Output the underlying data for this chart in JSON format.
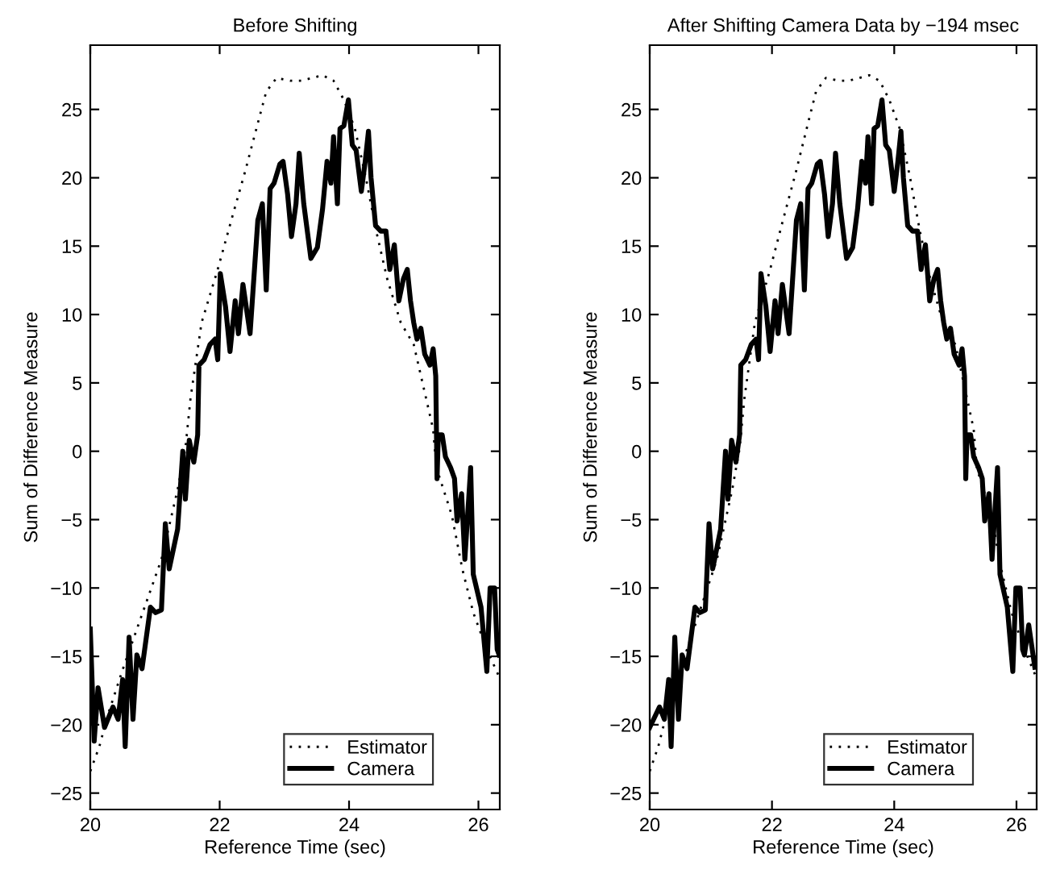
{
  "chart_data": [
    {
      "type": "line",
      "title": "Before Shifting",
      "xlabel": "Reference Time (sec)",
      "ylabel": "Sum of Difference Measure",
      "xlim": [
        20,
        26.33
      ],
      "xticks": [
        20,
        22,
        24,
        26
      ],
      "ylim": [
        -26.2,
        29.7
      ],
      "yticks": [
        -25,
        -20,
        -15,
        -10,
        -5,
        0,
        5,
        10,
        15,
        20,
        25
      ],
      "grid": false,
      "legend": "bottom right",
      "series": [
        {
          "name": "Estimator",
          "color": "#000000",
          "line_style": "dotted",
          "x": [
            20.0,
            20.14,
            20.27,
            20.52,
            20.81,
            21.1,
            21.35,
            21.47,
            21.55,
            21.72,
            21.97,
            22.18,
            22.39,
            22.59,
            22.72,
            22.88,
            23.09,
            23.26,
            23.59,
            23.76,
            23.92,
            24.09,
            24.26,
            24.42,
            24.59,
            24.8,
            25.0,
            25.17,
            25.3,
            25.35,
            25.59,
            25.75,
            25.92,
            26.13,
            26.32
          ],
          "values": [
            -23.4,
            -21.6,
            -19.3,
            -15.7,
            -11.8,
            -7.9,
            -2.8,
            0.2,
            3.9,
            9.4,
            13.3,
            16.9,
            20.4,
            24.0,
            26.3,
            27.3,
            27.1,
            27.1,
            27.5,
            27.1,
            25.7,
            23.6,
            20.0,
            16.1,
            12.6,
            9.4,
            7.8,
            4.3,
            1.6,
            -1.2,
            -4.7,
            -8.6,
            -11.8,
            -14.5,
            -16.5
          ]
        },
        {
          "name": "Camera",
          "color": "#000000",
          "line_style": "solid",
          "x": [
            20.0,
            20.06,
            20.12,
            20.22,
            20.35,
            20.43,
            20.5,
            20.54,
            20.6,
            20.66,
            20.72,
            20.8,
            20.93,
            21.01,
            21.1,
            21.16,
            21.22,
            21.35,
            21.43,
            21.47,
            21.53,
            21.6,
            21.66,
            21.68,
            21.76,
            21.85,
            21.93,
            21.97,
            22.01,
            22.09,
            22.16,
            22.24,
            22.29,
            22.36,
            22.47,
            22.59,
            22.66,
            22.72,
            22.78,
            22.84,
            22.93,
            22.98,
            23.05,
            23.11,
            23.18,
            23.23,
            23.3,
            23.41,
            23.51,
            23.59,
            23.66,
            23.72,
            23.76,
            23.82,
            23.86,
            23.92,
            23.99,
            24.05,
            24.11,
            24.19,
            24.25,
            24.3,
            24.34,
            24.41,
            24.49,
            24.57,
            24.63,
            24.7,
            24.77,
            24.84,
            24.9,
            24.95,
            25.0,
            25.05,
            25.11,
            25.17,
            25.25,
            25.3,
            25.34,
            25.36,
            25.38,
            25.44,
            25.49,
            25.57,
            25.63,
            25.67,
            25.74,
            25.79,
            25.88,
            25.92,
            26.04,
            26.13,
            26.18,
            26.25,
            26.29,
            26.32
          ],
          "values": [
            -13.0,
            -21.2,
            -17.3,
            -20.2,
            -18.7,
            -19.6,
            -16.7,
            -21.6,
            -13.6,
            -19.6,
            -14.9,
            -15.9,
            -11.4,
            -11.8,
            -11.6,
            -5.3,
            -8.6,
            -5.7,
            0.0,
            -3.5,
            0.8,
            -0.8,
            1.2,
            6.3,
            6.7,
            7.8,
            8.2,
            6.7,
            13.0,
            10.6,
            7.3,
            11.0,
            8.6,
            12.2,
            8.6,
            16.9,
            18.1,
            11.8,
            19.2,
            19.6,
            21.0,
            21.2,
            18.8,
            15.7,
            18.1,
            21.8,
            18.1,
            14.1,
            14.9,
            17.7,
            21.2,
            19.6,
            23.0,
            18.1,
            23.6,
            23.8,
            25.7,
            22.4,
            22.0,
            19.0,
            21.2,
            23.4,
            20.0,
            16.5,
            16.1,
            16.1,
            13.3,
            15.1,
            11.0,
            12.6,
            13.3,
            11.0,
            9.4,
            8.2,
            9.0,
            7.1,
            6.3,
            7.5,
            5.5,
            -2.0,
            1.2,
            1.2,
            -0.4,
            -1.2,
            -2.0,
            -5.1,
            -3.1,
            -7.9,
            -1.2,
            -9.0,
            -11.4,
            -16.1,
            -10.0,
            -10.0,
            -14.5,
            -14.9
          ]
        }
      ]
    },
    {
      "type": "line",
      "title": "After Shifting Camera Data by −194 msec",
      "xlabel": "Reference Time (sec)",
      "ylabel": "Sum of Difference Measure",
      "xlim": [
        20,
        26.33
      ],
      "xticks": [
        20,
        22,
        24,
        26
      ],
      "ylim": [
        -26.2,
        29.7
      ],
      "yticks": [
        -25,
        -20,
        -15,
        -10,
        -5,
        0,
        5,
        10,
        15,
        20,
        25
      ],
      "grid": false,
      "legend": "bottom right",
      "series": [
        {
          "name": "Estimator",
          "color": "#000000",
          "line_style": "dotted",
          "x": [
            20.0,
            20.14,
            20.27,
            20.52,
            20.81,
            21.1,
            21.35,
            21.47,
            21.55,
            21.72,
            21.97,
            22.18,
            22.39,
            22.59,
            22.72,
            22.88,
            23.09,
            23.26,
            23.59,
            23.76,
            23.92,
            24.09,
            24.26,
            24.42,
            24.59,
            24.8,
            25.0,
            25.17,
            25.3,
            25.35,
            25.59,
            25.75,
            25.92,
            26.13,
            26.32
          ],
          "values": [
            -23.4,
            -21.6,
            -19.3,
            -15.7,
            -11.8,
            -7.9,
            -2.8,
            0.2,
            3.9,
            9.4,
            13.3,
            16.9,
            20.4,
            24.0,
            26.3,
            27.3,
            27.1,
            27.1,
            27.5,
            27.1,
            25.7,
            23.6,
            20.0,
            16.1,
            12.6,
            9.4,
            7.8,
            4.3,
            1.6,
            -1.2,
            -4.7,
            -8.6,
            -11.8,
            -14.5,
            -16.5
          ]
        },
        {
          "name": "Camera",
          "color": "#000000",
          "line_style": "solid",
          "x": [
            20.0,
            20.16,
            20.24,
            20.31,
            20.35,
            20.41,
            20.47,
            20.53,
            20.61,
            20.74,
            20.82,
            20.91,
            20.97,
            21.03,
            21.16,
            21.24,
            21.28,
            21.34,
            21.41,
            21.47,
            21.49,
            21.57,
            21.66,
            21.74,
            21.78,
            21.82,
            21.9,
            21.97,
            22.05,
            22.1,
            22.17,
            22.28,
            22.4,
            22.47,
            22.53,
            22.59,
            22.65,
            22.74,
            22.79,
            22.86,
            22.92,
            22.99,
            23.04,
            23.11,
            23.22,
            23.32,
            23.4,
            23.47,
            23.53,
            23.57,
            23.63,
            23.67,
            23.73,
            23.8,
            23.86,
            23.92,
            24.0,
            24.06,
            24.11,
            24.15,
            24.22,
            24.3,
            24.38,
            24.44,
            24.51,
            24.58,
            24.65,
            24.71,
            24.76,
            24.81,
            24.86,
            24.92,
            24.98,
            25.06,
            25.11,
            25.15,
            25.17,
            25.19,
            25.25,
            25.3,
            25.38,
            25.44,
            25.48,
            25.55,
            25.6,
            25.69,
            25.73,
            25.85,
            25.94,
            25.99,
            26.06,
            26.1,
            26.13,
            26.2,
            26.3
          ],
          "values": [
            -20.2,
            -18.7,
            -19.6,
            -16.7,
            -21.6,
            -13.6,
            -19.6,
            -14.9,
            -15.9,
            -11.4,
            -11.8,
            -11.6,
            -5.3,
            -8.6,
            -5.7,
            0.0,
            -3.5,
            0.8,
            -0.8,
            1.2,
            6.3,
            6.7,
            7.8,
            8.2,
            6.7,
            13.0,
            10.6,
            7.3,
            11.0,
            8.6,
            12.2,
            8.6,
            16.9,
            18.1,
            11.8,
            19.2,
            19.6,
            21.0,
            21.2,
            18.8,
            15.7,
            18.1,
            21.8,
            18.1,
            14.1,
            14.9,
            17.7,
            21.2,
            19.6,
            23.0,
            18.1,
            23.6,
            23.8,
            25.7,
            22.4,
            22.0,
            19.0,
            21.2,
            23.4,
            20.0,
            16.5,
            16.1,
            16.1,
            13.3,
            15.1,
            11.0,
            12.6,
            13.3,
            11.0,
            9.4,
            8.2,
            9.0,
            7.1,
            6.3,
            7.5,
            5.5,
            -2.0,
            1.2,
            1.2,
            -0.4,
            -1.2,
            -2.0,
            -5.1,
            -3.1,
            -7.9,
            -1.2,
            -9.0,
            -11.4,
            -16.1,
            -10.0,
            -10.0,
            -14.5,
            -14.9,
            -12.7,
            -15.8
          ]
        }
      ]
    }
  ]
}
